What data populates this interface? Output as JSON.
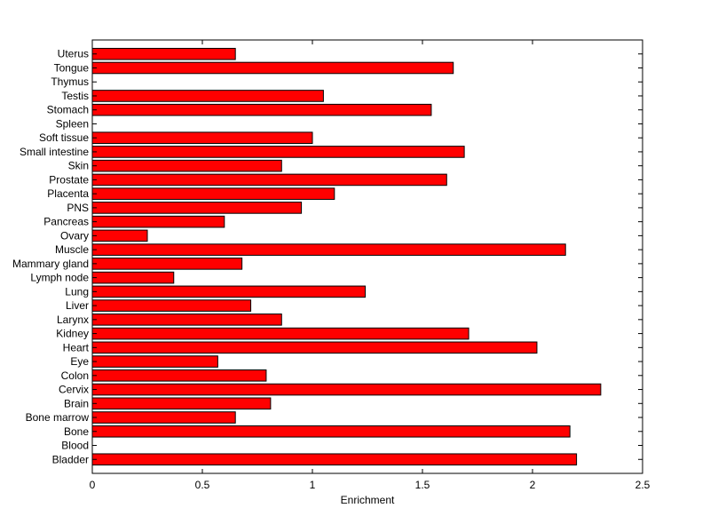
{
  "chart_data": {
    "type": "bar",
    "orientation": "horizontal",
    "title": "",
    "xlabel": "Enrichment",
    "ylabel": "",
    "xlim": [
      0,
      2.5
    ],
    "xticks": [
      "0",
      "0.5",
      "1",
      "1.5",
      "2",
      "2.5"
    ],
    "grid": false,
    "bar_color": "#ff0000",
    "edge_color": "#000000",
    "categories": [
      "Uterus",
      "Tongue",
      "Thymus",
      "Testis",
      "Stomach",
      "Spleen",
      "Soft tissue",
      "Small intestine",
      "Skin",
      "Prostate",
      "Placenta",
      "PNS",
      "Pancreas",
      "Ovary",
      "Muscle",
      "Mammary gland",
      "Lymph node",
      "Lung",
      "Liver",
      "Larynx",
      "Kidney",
      "Heart",
      "Eye",
      "Colon",
      "Cervix",
      "Brain",
      "Bone marrow",
      "Bone",
      "Blood",
      "Bladder"
    ],
    "values": [
      0.65,
      1.64,
      0,
      1.05,
      1.54,
      0,
      1.0,
      1.69,
      0.86,
      1.61,
      1.1,
      0.95,
      0.6,
      0.25,
      2.15,
      0.68,
      0.37,
      1.24,
      0.72,
      0.86,
      1.71,
      2.02,
      0.57,
      0.79,
      2.31,
      0.81,
      0.65,
      2.17,
      0,
      2.2
    ]
  }
}
